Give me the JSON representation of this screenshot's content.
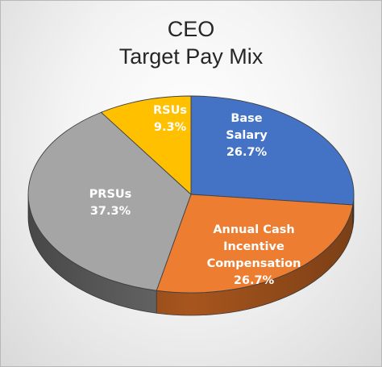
{
  "chart_data": {
    "type": "pie",
    "title_lines": [
      "CEO",
      "Target Pay Mix"
    ],
    "slices": [
      {
        "label_lines": [
          "Base",
          "Salary"
        ],
        "value": 26.7,
        "value_label": "26.7%",
        "color": "#4472C4",
        "side_color": "#2E4E8A",
        "text_color": "#ffffff"
      },
      {
        "label_lines": [
          "Annual Cash",
          "Incentive",
          "Compensation"
        ],
        "value": 26.7,
        "value_label": "26.7%",
        "color": "#ED7D31",
        "side_color": "#B05A1F",
        "text_color": "#ffffff"
      },
      {
        "label_lines": [
          "PRSUs"
        ],
        "value": 37.3,
        "value_label": "37.3%",
        "color": "#A5A5A5",
        "side_color": "#6E6E6E",
        "text_color": "#ffffff"
      },
      {
        "label_lines": [
          "RSUs"
        ],
        "value": 9.3,
        "value_label": "9.3%",
        "color": "#FFC000",
        "side_color": "#B38600",
        "text_color": "#ffffff"
      }
    ],
    "start_angle_deg": 0,
    "direction": "clockwise",
    "style": "3d"
  }
}
